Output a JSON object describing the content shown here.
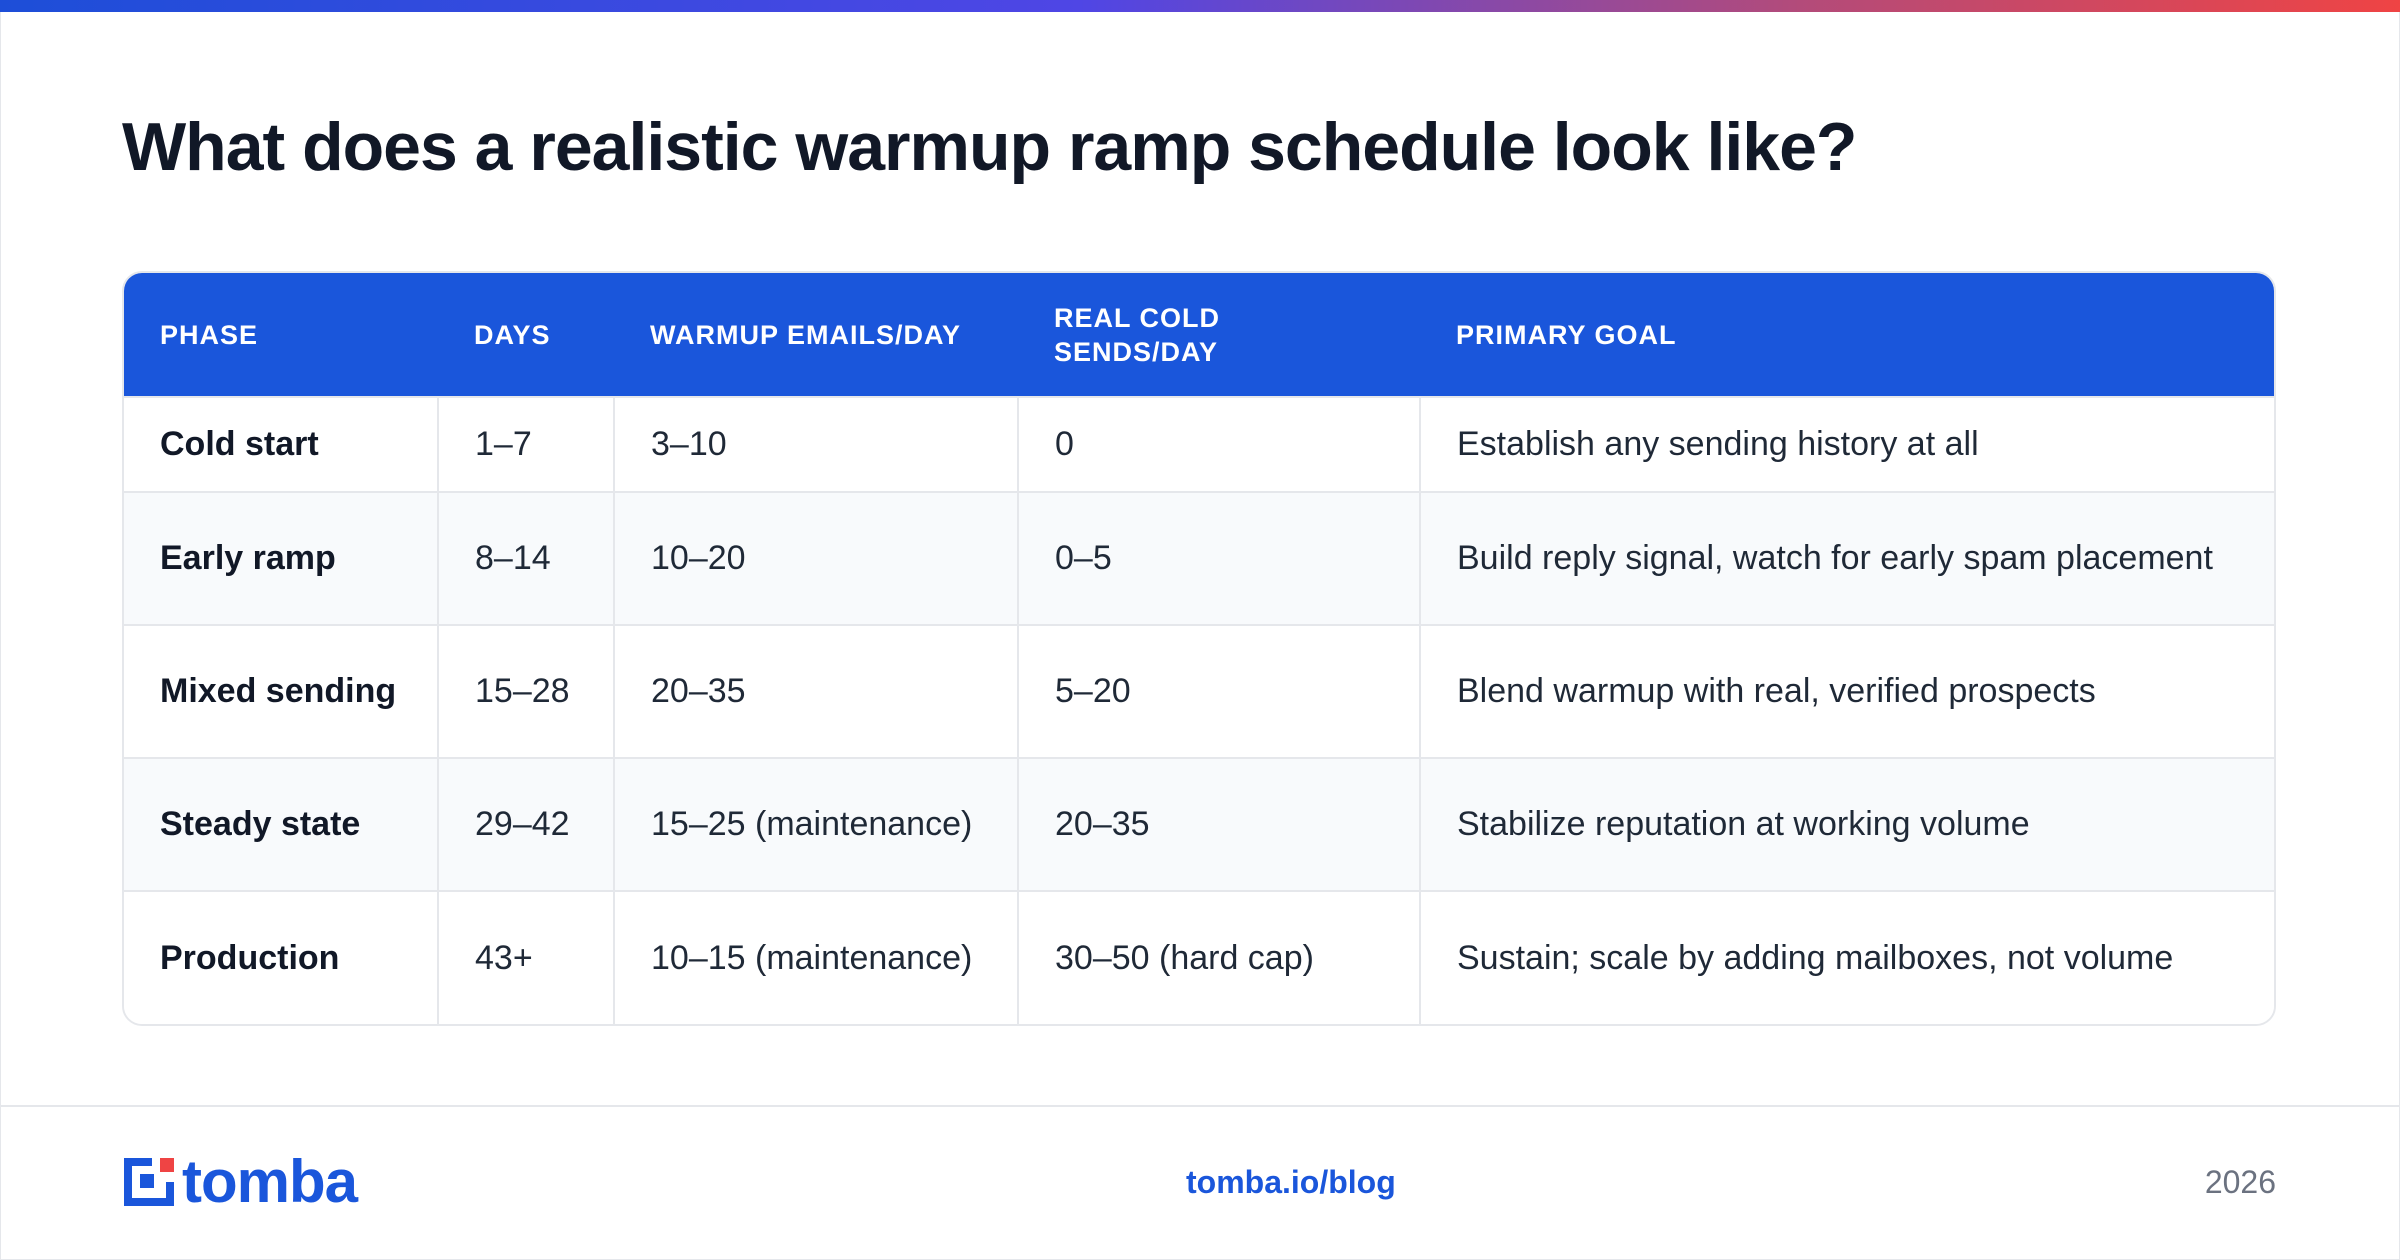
{
  "title": "What does a realistic warmup ramp schedule look like?",
  "table": {
    "headers": {
      "phase": "PHASE",
      "days": "DAYS",
      "warmup": "WARMUP EMAILS/DAY",
      "cold": "REAL COLD SENDS/DAY",
      "goal": "PRIMARY GOAL"
    },
    "rows": [
      {
        "phase": "Cold start",
        "days": "1–7",
        "warmup": "3–10",
        "cold": "0",
        "goal": "Establish any sending history at all"
      },
      {
        "phase": "Early ramp",
        "days": "8–14",
        "warmup": "10–20",
        "cold": "0–5",
        "goal": "Build reply signal, watch for early spam placement"
      },
      {
        "phase": "Mixed sending",
        "days": "15–28",
        "warmup": "20–35",
        "cold": "5–20",
        "goal": "Blend warmup with real, verified prospects"
      },
      {
        "phase": "Steady state",
        "days": "29–42",
        "warmup": "15–25 (maintenance)",
        "cold": "20–35",
        "goal": "Stabilize reputation at working volume"
      },
      {
        "phase": "Production",
        "days": "43+",
        "warmup": "10–15 (maintenance)",
        "cold": "30–50 (hard cap)",
        "goal": "Sustain; scale by adding mailboxes, not volume"
      }
    ]
  },
  "footer": {
    "logo_text": "tomba",
    "logo_icon": "tomba-logo-icon",
    "link": "tomba.io/blog",
    "year": "2026"
  },
  "colors": {
    "accent": "#1a56db",
    "gradient_start": "#1d4ed8",
    "gradient_end": "#ef4444",
    "logo_red": "#ef4444"
  }
}
